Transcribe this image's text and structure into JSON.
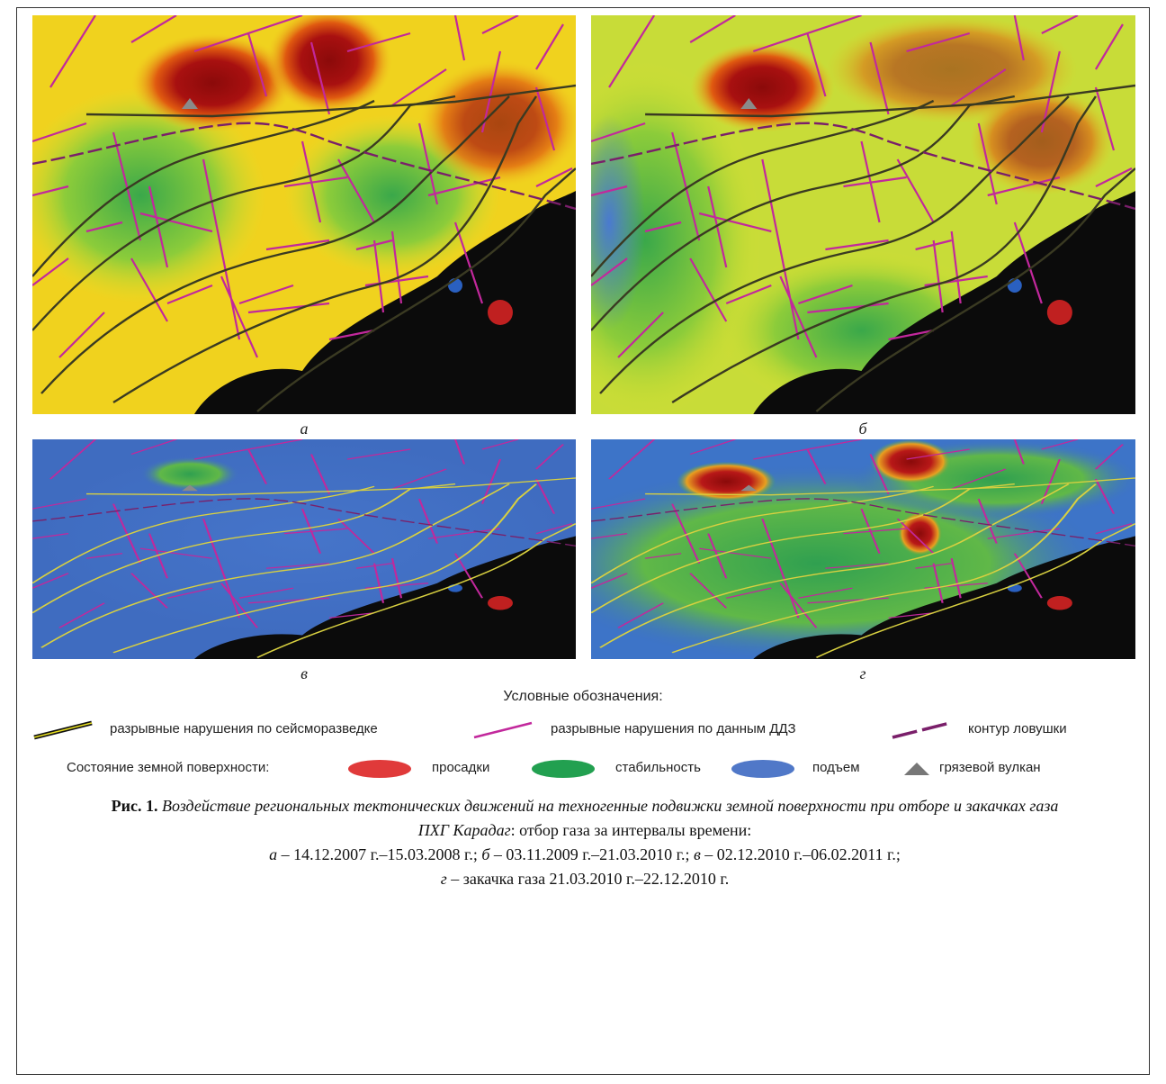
{
  "panels": [
    {
      "label": "а"
    },
    {
      "label": "б"
    },
    {
      "label": "в"
    },
    {
      "label": "г"
    }
  ],
  "legend": {
    "title": "Условные обозначения:",
    "lines": [
      "разрывные нарушения по сейсморазведке",
      "разрывные нарушения по данным ДДЗ",
      "контур ловушки"
    ],
    "surface_label": "Состояние земной поверхности:",
    "surface": [
      "просадки",
      "стабильность",
      "подъем"
    ],
    "volcano": "грязевой вулкан"
  },
  "caption": {
    "label": "Рис. 1.",
    "title": "Воздействие региональных тектонических движений на техногенные подвижки земной поверхности при отборе и закачках газа ПХГ Карадаг",
    "text": ": отбор газа за интервалы времени:",
    "periods": [
      {
        "letter": "а",
        "text": " – 14.12.2007 г.–15.03.2008 г.; "
      },
      {
        "letter": "б",
        "text": " – 03.11.2009 г.–21.03.2010 г.; "
      },
      {
        "letter": "в",
        "text": " – 02.12.2010 г.–06.02.2011 г.;"
      },
      {
        "letter": "г",
        "text": " – закачка газа 21.03.2010 г.–22.12.2010 г."
      }
    ]
  }
}
